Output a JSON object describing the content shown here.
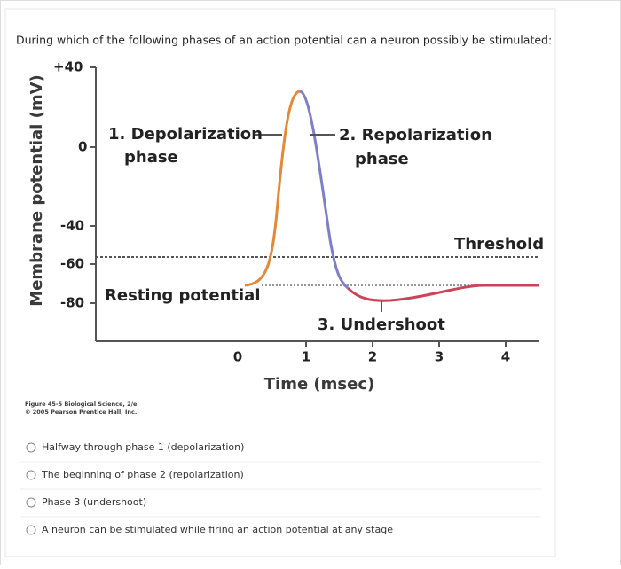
{
  "question": "During which of the following phases of an action potential can a neuron possibly be stimulated:",
  "figure": {
    "y_axis_label": "Membrane potential (mV)",
    "y_tick_labels": [
      "+40",
      "0",
      "-40",
      "-60",
      "-80"
    ],
    "x_tick_labels": [
      "0",
      "1",
      "2",
      "3",
      "4"
    ],
    "x_axis_label": "Time (msec)",
    "annotations": [
      "1. Depolarization",
      "phase",
      "2. Repolarization",
      "phase",
      "Threshold",
      "Resting potential",
      "3. Undershoot"
    ],
    "caption": [
      "Figure 45-5 Biological Science, 2/e",
      "© 2005 Pearson Prentice Hall, Inc."
    ]
  },
  "options": [
    "Halfway through phase 1 (depolarization)",
    "The beginning of phase 2 (repolarization)",
    "Phase 3 (undershoot)",
    "A neuron can be stimulated while firing an action potential at any stage"
  ]
}
